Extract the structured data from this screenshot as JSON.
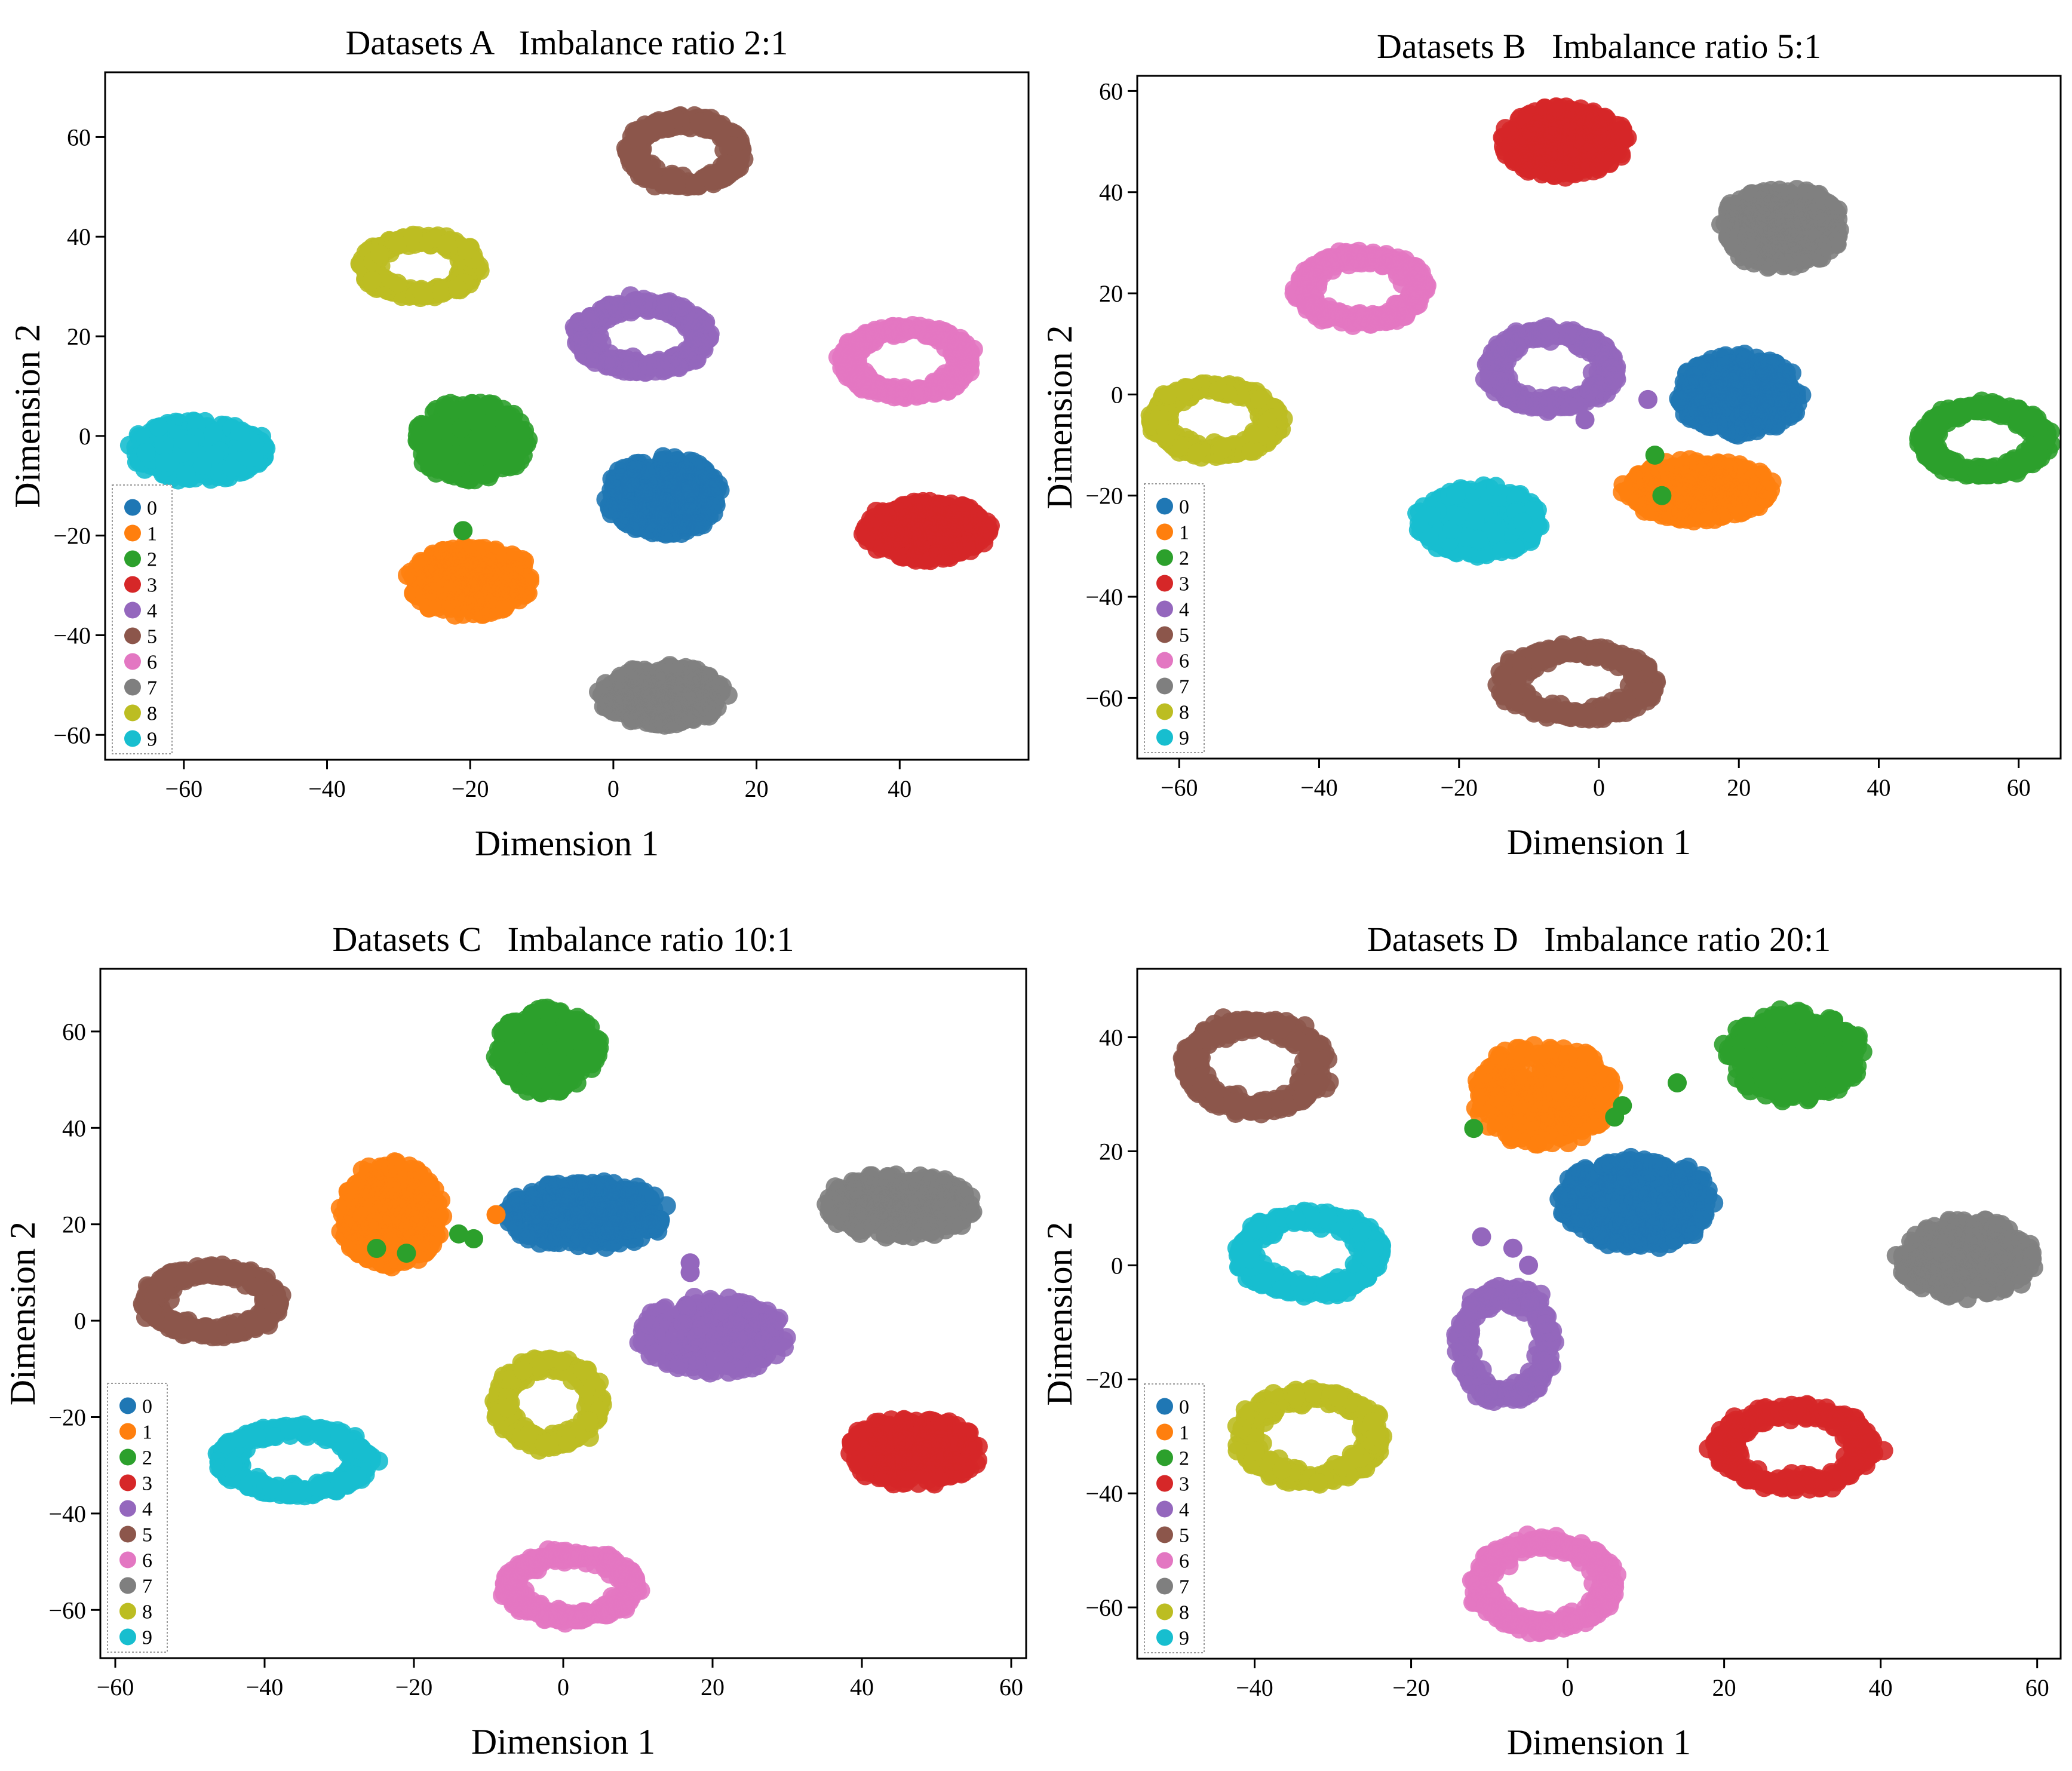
{
  "chart_data": [
    {
      "type": "scatter",
      "title": "Datasets A   Imbalance ratio 2:1",
      "xlabel": "Dimension 1",
      "ylabel": "Dimension 2",
      "xlim": [
        -71,
        58
      ],
      "ylim": [
        -65,
        73
      ],
      "xticks": [
        -60,
        -40,
        -20,
        0,
        20,
        40
      ],
      "yticks": [
        -60,
        -40,
        -20,
        0,
        20,
        40,
        60
      ],
      "legend": "lower-left",
      "clusters": [
        {
          "label": "0",
          "x": 7,
          "y": -12,
          "rx": 8,
          "ry": 8,
          "shape": "blob"
        },
        {
          "label": "1",
          "x": -20,
          "y": -29,
          "rx": 9,
          "ry": 7,
          "shape": "blob"
        },
        {
          "label": "2",
          "x": -20,
          "y": -1,
          "rx": 8,
          "ry": 8,
          "shape": "blob"
        },
        {
          "label": "3",
          "x": 44,
          "y": -19,
          "rx": 9,
          "ry": 6,
          "shape": "blob"
        },
        {
          "label": "4",
          "x": 4,
          "y": 20,
          "rx": 9,
          "ry": 7,
          "shape": "ring"
        },
        {
          "label": "5",
          "x": 10,
          "y": 57,
          "rx": 8,
          "ry": 7,
          "shape": "ring"
        },
        {
          "label": "6",
          "x": 41,
          "y": 15,
          "rx": 9,
          "ry": 7,
          "shape": "ring"
        },
        {
          "label": "7",
          "x": 7,
          "y": -52,
          "rx": 9,
          "ry": 6,
          "shape": "blob"
        },
        {
          "label": "8",
          "x": -27,
          "y": 34,
          "rx": 8,
          "ry": 6,
          "shape": "ring"
        },
        {
          "label": "9",
          "x": -58,
          "y": -3,
          "rx": 10,
          "ry": 6,
          "shape": "blob"
        }
      ],
      "outliers": [
        {
          "label": "2",
          "x": -21,
          "y": -19
        }
      ]
    },
    {
      "type": "scatter",
      "title": "Datasets B   Imbalance ratio 5:1",
      "xlabel": "Dimension 1",
      "ylabel": "Dimension 2",
      "xlim": [
        -66,
        66
      ],
      "ylim": [
        -72,
        63
      ],
      "xticks": [
        -60,
        -40,
        -20,
        0,
        20,
        40,
        60
      ],
      "yticks": [
        -60,
        -40,
        -20,
        0,
        20,
        40,
        60
      ],
      "legend": "lower-left",
      "clusters": [
        {
          "label": "0",
          "x": 20,
          "y": 0,
          "rx": 9,
          "ry": 8,
          "shape": "blob"
        },
        {
          "label": "1",
          "x": 14,
          "y": -19,
          "rx": 11,
          "ry": 6,
          "shape": "blob"
        },
        {
          "label": "2",
          "x": 55,
          "y": -9,
          "rx": 9,
          "ry": 7,
          "shape": "ring"
        },
        {
          "label": "3",
          "x": -5,
          "y": 50,
          "rx": 9,
          "ry": 7,
          "shape": "blob"
        },
        {
          "label": "4",
          "x": -7,
          "y": 5,
          "rx": 9,
          "ry": 8,
          "shape": "ring"
        },
        {
          "label": "5",
          "x": -3,
          "y": -57,
          "rx": 11,
          "ry": 7,
          "shape": "ring"
        },
        {
          "label": "6",
          "x": -34,
          "y": 21,
          "rx": 9,
          "ry": 7,
          "shape": "ring"
        },
        {
          "label": "7",
          "x": 26,
          "y": 33,
          "rx": 9,
          "ry": 8,
          "shape": "blob"
        },
        {
          "label": "8",
          "x": -55,
          "y": -5,
          "rx": 9,
          "ry": 7,
          "shape": "ring"
        },
        {
          "label": "9",
          "x": -17,
          "y": -25,
          "rx": 9,
          "ry": 7,
          "shape": "blob"
        }
      ],
      "outliers": [
        {
          "label": "2",
          "x": 8,
          "y": -12
        },
        {
          "label": "2",
          "x": 9,
          "y": -20
        },
        {
          "label": "4",
          "x": 7,
          "y": -1
        },
        {
          "label": "4",
          "x": -2,
          "y": -5
        }
      ]
    },
    {
      "type": "scatter",
      "title": "Datasets C   Imbalance ratio 10:1",
      "xlabel": "Dimension 1",
      "ylabel": "Dimension 2",
      "xlim": [
        -62,
        62
      ],
      "ylim": [
        -70,
        73
      ],
      "xticks": [
        -60,
        -40,
        -20,
        0,
        20,
        40,
        60
      ],
      "yticks": [
        -60,
        -40,
        -20,
        0,
        20,
        40,
        60
      ],
      "legend": "lower-left",
      "clusters": [
        {
          "label": "0",
          "x": 3,
          "y": 22,
          "rx": 11,
          "ry": 7,
          "shape": "blob"
        },
        {
          "label": "1",
          "x": -23,
          "y": 22,
          "rx": 7,
          "ry": 11,
          "shape": "blob"
        },
        {
          "label": "2",
          "x": -2,
          "y": 56,
          "rx": 7,
          "ry": 9,
          "shape": "blob"
        },
        {
          "label": "3",
          "x": 47,
          "y": -27,
          "rx": 9,
          "ry": 7,
          "shape": "blob"
        },
        {
          "label": "4",
          "x": 20,
          "y": -3,
          "rx": 10,
          "ry": 8,
          "shape": "blob"
        },
        {
          "label": "5",
          "x": -47,
          "y": 4,
          "rx": 9,
          "ry": 7,
          "shape": "ring"
        },
        {
          "label": "6",
          "x": 1,
          "y": -55,
          "rx": 9,
          "ry": 7,
          "shape": "ring"
        },
        {
          "label": "7",
          "x": 45,
          "y": 24,
          "rx": 10,
          "ry": 7,
          "shape": "blob"
        },
        {
          "label": "8",
          "x": -2,
          "y": -17,
          "rx": 7,
          "ry": 9,
          "shape": "ring"
        },
        {
          "label": "9",
          "x": -36,
          "y": -29,
          "rx": 10,
          "ry": 7,
          "shape": "ring"
        }
      ],
      "outliers": [
        {
          "label": "1",
          "x": -9,
          "y": 22
        },
        {
          "label": "2",
          "x": -25,
          "y": 15
        },
        {
          "label": "2",
          "x": -21,
          "y": 14
        },
        {
          "label": "2",
          "x": -14,
          "y": 18
        },
        {
          "label": "2",
          "x": -12,
          "y": 17
        },
        {
          "label": "4",
          "x": 17,
          "y": 12
        },
        {
          "label": "4",
          "x": 17,
          "y": 10
        }
      ]
    },
    {
      "type": "scatter",
      "title": "Datasets D   Imbalance ratio 20:1",
      "xlabel": "Dimension 1",
      "ylabel": "Dimension 2",
      "xlim": [
        -55,
        63
      ],
      "ylim": [
        -69,
        52
      ],
      "xticks": [
        -40,
        -20,
        0,
        20,
        40,
        60
      ],
      "yticks": [
        -60,
        -40,
        -20,
        0,
        20,
        40
      ],
      "legend": "lower-left",
      "clusters": [
        {
          "label": "0",
          "x": 9,
          "y": 11,
          "rx": 10,
          "ry": 8,
          "shape": "blob"
        },
        {
          "label": "1",
          "x": -3,
          "y": 30,
          "rx": 9,
          "ry": 9,
          "shape": "blob"
        },
        {
          "label": "2",
          "x": 29,
          "y": 37,
          "rx": 9,
          "ry": 8,
          "shape": "blob"
        },
        {
          "label": "3",
          "x": 29,
          "y": -32,
          "rx": 10,
          "ry": 7,
          "shape": "ring"
        },
        {
          "label": "4",
          "x": -8,
          "y": -14,
          "rx": 6,
          "ry": 10,
          "shape": "ring"
        },
        {
          "label": "5",
          "x": -40,
          "y": 35,
          "rx": 9,
          "ry": 8,
          "shape": "ring"
        },
        {
          "label": "6",
          "x": -3,
          "y": -56,
          "rx": 9,
          "ry": 8,
          "shape": "ring"
        },
        {
          "label": "7",
          "x": 51,
          "y": 1,
          "rx": 9,
          "ry": 7,
          "shape": "blob"
        },
        {
          "label": "8",
          "x": -33,
          "y": -30,
          "rx": 9,
          "ry": 8,
          "shape": "ring"
        },
        {
          "label": "9",
          "x": -33,
          "y": 2,
          "rx": 9,
          "ry": 7,
          "shape": "ring"
        }
      ],
      "outliers": [
        {
          "label": "2",
          "x": -12,
          "y": 24
        },
        {
          "label": "2",
          "x": 6,
          "y": 26
        },
        {
          "label": "2",
          "x": 7,
          "y": 28
        },
        {
          "label": "2",
          "x": 14,
          "y": 32
        },
        {
          "label": "2",
          "x": 34,
          "y": 43
        },
        {
          "label": "4",
          "x": -11,
          "y": 5
        },
        {
          "label": "4",
          "x": -7,
          "y": 3
        },
        {
          "label": "4",
          "x": -5,
          "y": 0
        }
      ]
    }
  ],
  "legend": {
    "labels": [
      "0",
      "1",
      "2",
      "3",
      "4",
      "5",
      "6",
      "7",
      "8",
      "9"
    ],
    "colors": [
      "#1f77b4",
      "#ff7f0e",
      "#2ca02c",
      "#d62728",
      "#9467bd",
      "#8c564b",
      "#e377c2",
      "#7f7f7f",
      "#bcbd22",
      "#17becf"
    ]
  }
}
